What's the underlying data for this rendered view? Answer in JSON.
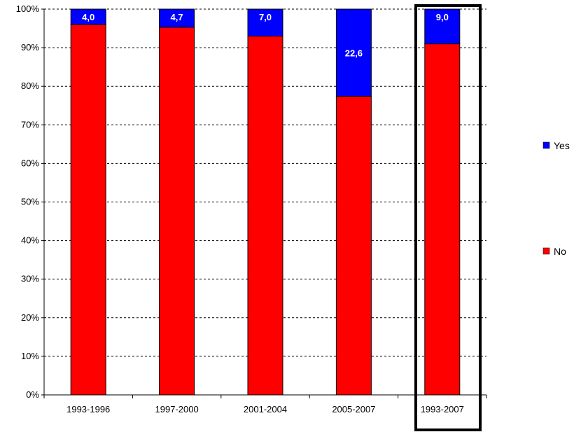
{
  "chart_data": {
    "type": "bar",
    "stacked": true,
    "percent_axis": true,
    "categories": [
      "1993-1996",
      "1997-2000",
      "2001-2004",
      "2005-2007",
      "1993-2007"
    ],
    "series": [
      {
        "name": "No",
        "color": "#ff0000",
        "values": [
          96.0,
          95.3,
          93.0,
          77.4,
          91.0
        ],
        "data_labels": [
          "",
          "",
          "",
          "",
          ""
        ]
      },
      {
        "name": "Yes",
        "color": "#0000ff",
        "values": [
          4.0,
          4.7,
          7.0,
          22.6,
          9.0
        ],
        "data_labels": [
          "4,0",
          "4,7",
          "7,0",
          "22,6",
          "9,0"
        ]
      }
    ],
    "ylim": [
      0,
      100
    ],
    "y_ticks": [
      "0%",
      "10%",
      "20%",
      "30%",
      "40%",
      "50%",
      "60%",
      "70%",
      "80%",
      "90%",
      "100%"
    ],
    "gridlines": "dashed",
    "legend_position": "right",
    "legend": [
      "Yes",
      "No"
    ],
    "highlighted_category": "1993-2007",
    "title": "",
    "xlabel": "",
    "ylabel": ""
  }
}
